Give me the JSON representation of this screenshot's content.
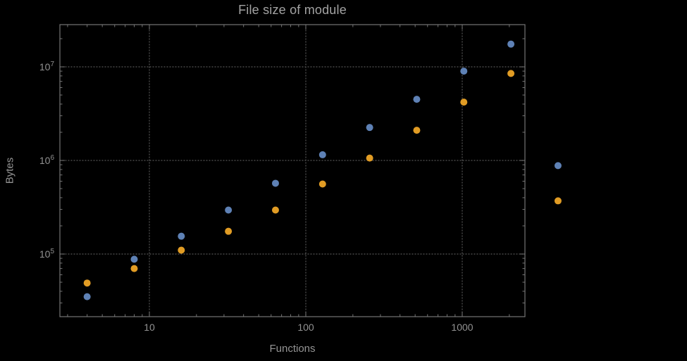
{
  "colors": {
    "background": "#000000",
    "frame": "#757575",
    "grid": "#575757",
    "tick_text": "#929292",
    "title_text": "#a3a3a3",
    "series1": "#5e81b5",
    "series2": "#e19c24"
  },
  "chart_data": {
    "type": "scatter",
    "title": "File size of module",
    "xlabel": "Functions",
    "ylabel": "Bytes",
    "x_scale": "log",
    "y_scale": "log",
    "grid": "dotted",
    "legend": "none",
    "x_ticks": [
      10,
      100,
      1000
    ],
    "x_tick_labels": [
      "10",
      "100",
      "1000"
    ],
    "y_ticks": [
      100000,
      1000000,
      10000000
    ],
    "y_tick_labels": [
      "10^5",
      "10^6",
      "10^7"
    ],
    "x_range_approx": [
      2.7,
      2500
    ],
    "y_range_approx": [
      21000,
      28000000
    ],
    "x": [
      4,
      8,
      16,
      32,
      64,
      128,
      256,
      512,
      1024,
      2048,
      4096
    ],
    "series": [
      {
        "name": "series-1-blue",
        "color": "#5e81b5",
        "values": [
          35000,
          88000,
          155000,
          295000,
          570000,
          1150000,
          2250000,
          4500000,
          9000000,
          17500000,
          880000
        ]
      },
      {
        "name": "series-2-orange",
        "color": "#e19c24",
        "values": [
          49000,
          70000,
          110000,
          175000,
          295000,
          560000,
          1060000,
          2100000,
          4200000,
          8500000,
          370000
        ]
      }
    ]
  }
}
